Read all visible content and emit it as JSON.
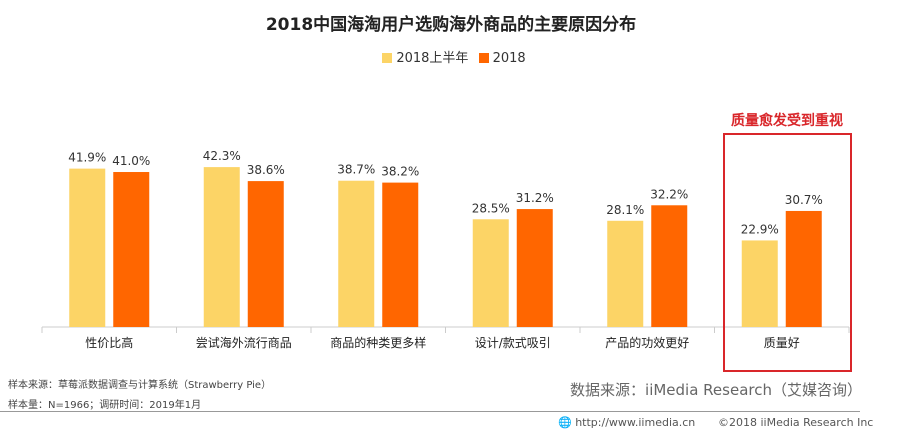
{
  "chart_data": {
    "type": "bar",
    "title": "2018中国海淘用户选购海外商品的主要原因分布",
    "categories": [
      "性价比高",
      "尝试海外流行商品",
      "商品的种类更多样",
      "设计/款式吸引",
      "产品的功效更好",
      "质量好"
    ],
    "series": [
      {
        "name": "2018上半年",
        "color": "#FCD466",
        "values": [
          41.9,
          42.3,
          38.7,
          28.5,
          28.1,
          22.9
        ]
      },
      {
        "name": "2018",
        "color": "#FF6600",
        "values": [
          41.0,
          38.6,
          38.2,
          31.2,
          32.2,
          30.7
        ]
      }
    ],
    "unit": "%",
    "ylim": [
      0,
      45
    ],
    "grid": false,
    "legend": "top-center",
    "annotation": {
      "text": "质量愈发受到重视",
      "category": "质量好",
      "color": "#d9262a"
    }
  },
  "notes": {
    "sample_source": "样本来源：草莓派数据调查与计算系统（Strawberry Pie）",
    "sample_size": "样本量：N=1966；调研时间：2019年1月",
    "data_source": "数据来源：iiMedia Research（艾媒咨询）",
    "url": "http://www.iimedia.cn",
    "copyright": "©2018  iiMedia Research  Inc"
  }
}
